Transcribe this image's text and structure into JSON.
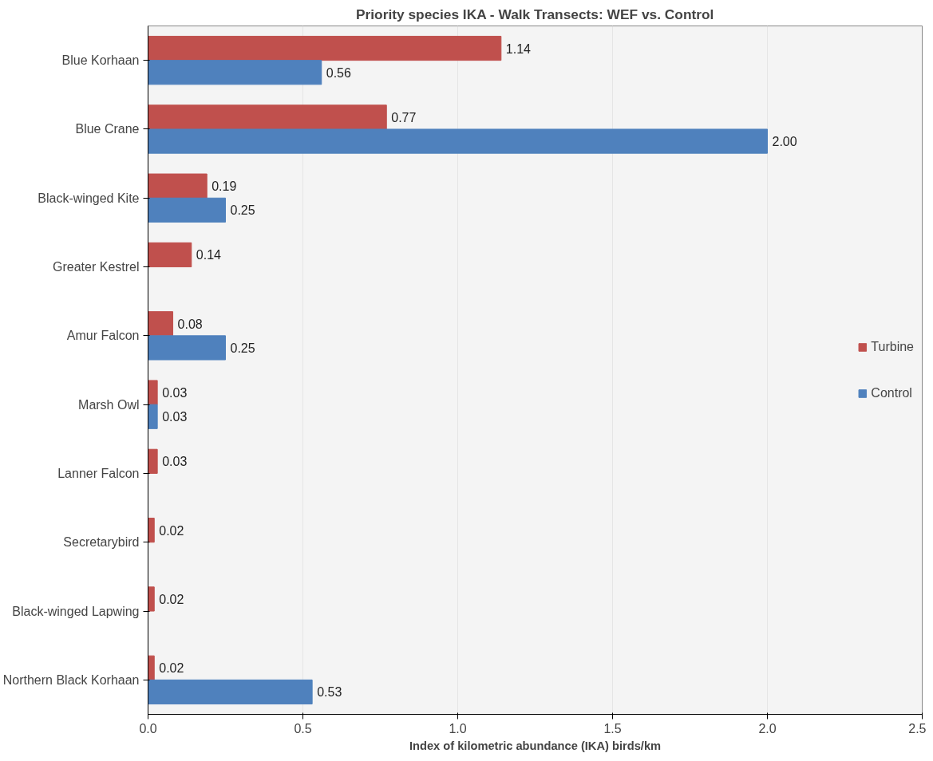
{
  "chart_data": {
    "type": "bar",
    "orientation": "horizontal",
    "title": "Priority species IKA - Walk Transects: WEF vs. Control",
    "xlabel": "Index of kilometric abundance (IKA) birds/km",
    "categories": [
      "Blue Korhaan",
      "Blue Crane",
      "Black-winged Kite",
      "Greater Kestrel",
      "Amur Falcon",
      "Marsh Owl",
      "Lanner Falcon",
      "Secretarybird",
      "Black-winged Lapwing",
      "Northern Black Korhaan"
    ],
    "series": [
      {
        "name": "Turbine",
        "color": "#c0504d",
        "values": [
          1.14,
          0.77,
          0.19,
          0.14,
          0.08,
          0.03,
          0.03,
          0.02,
          0.02,
          0.02
        ],
        "value_labels": [
          "1.14",
          "0.77",
          "0.19",
          "0.14",
          "0.08",
          "0.03",
          "0.03",
          "0.02",
          "0.02",
          "0.02"
        ]
      },
      {
        "name": "Control",
        "color": "#4f81bd",
        "values": [
          0.56,
          2.0,
          0.25,
          null,
          0.25,
          0.03,
          null,
          null,
          null,
          0.53
        ],
        "value_labels": [
          "0.56",
          "2.00",
          "0.25",
          null,
          "0.25",
          "0.03",
          null,
          null,
          null,
          "0.53"
        ]
      }
    ],
    "xlim": [
      0,
      2.5
    ],
    "xticks": [
      {
        "value": 0,
        "label": "0.0"
      },
      {
        "value": 0.5,
        "label": "0.5"
      },
      {
        "value": 1,
        "label": "1.0"
      },
      {
        "value": 1.5,
        "label": "1.5"
      },
      {
        "value": 2,
        "label": "2.0"
      },
      {
        "value": 2.5,
        "label": "2.5"
      }
    ],
    "grid": "x",
    "legend": "right"
  }
}
